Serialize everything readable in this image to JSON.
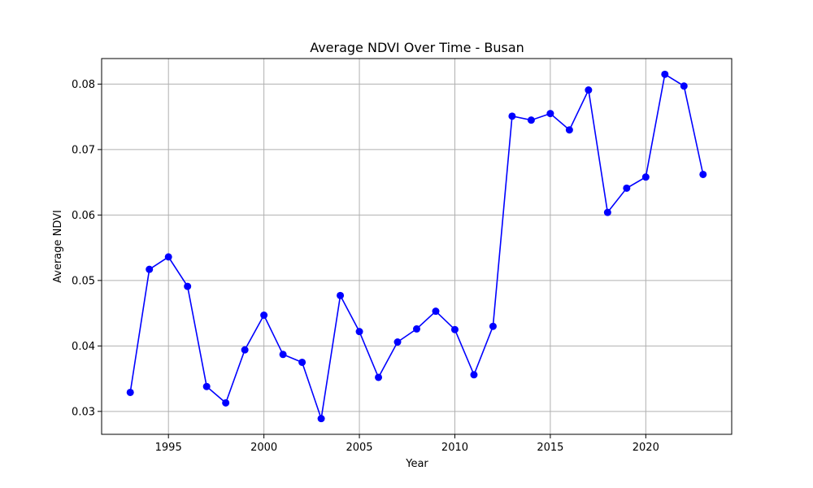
{
  "chart_data": {
    "type": "line",
    "title": "Average NDVI Over Time - Busan",
    "xlabel": "Year",
    "ylabel": "Average NDVI",
    "xlim": [
      1991.5,
      2024.5
    ],
    "ylim": [
      0.0265,
      0.0839
    ],
    "xticks": [
      1995,
      2000,
      2005,
      2010,
      2015,
      2020
    ],
    "yticks": [
      0.03,
      0.04,
      0.05,
      0.06,
      0.07,
      0.08
    ],
    "ytick_labels": [
      "0.03",
      "0.04",
      "0.05",
      "0.06",
      "0.07",
      "0.08"
    ],
    "grid": true,
    "line_color": "#0000ff",
    "marker": "circle",
    "x": [
      1993,
      1994,
      1995,
      1996,
      1997,
      1998,
      1999,
      2000,
      2001,
      2002,
      2003,
      2004,
      2005,
      2006,
      2007,
      2008,
      2009,
      2010,
      2011,
      2012,
      2013,
      2014,
      2015,
      2016,
      2017,
      2018,
      2019,
      2020,
      2021,
      2022,
      2023
    ],
    "y": [
      0.0329,
      0.0517,
      0.0536,
      0.0491,
      0.0338,
      0.0313,
      0.0394,
      0.0447,
      0.0387,
      0.0375,
      0.0289,
      0.0477,
      0.0422,
      0.0352,
      0.0406,
      0.0426,
      0.0453,
      0.0425,
      0.0356,
      0.043,
      0.0751,
      0.0745,
      0.0755,
      0.073,
      0.0791,
      0.0604,
      0.0641,
      0.0658,
      0.0815,
      0.0797,
      0.0662
    ]
  }
}
